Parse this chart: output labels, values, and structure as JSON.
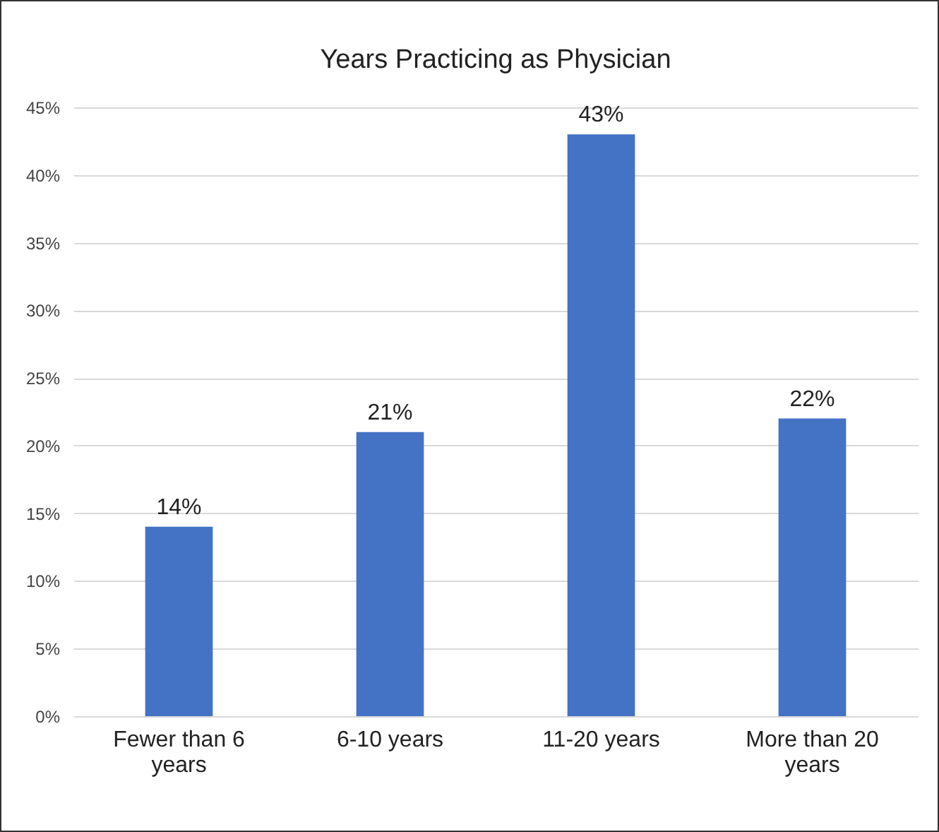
{
  "chart_data": {
    "type": "bar",
    "title": "Years Practicing as Physician",
    "categories": [
      "Fewer than 6 years",
      "6-10 years",
      "11-20 years",
      "More than 20 years"
    ],
    "values": [
      14,
      21,
      43,
      22
    ],
    "value_labels": [
      "14%",
      "21%",
      "43%",
      "22%"
    ],
    "color": "#4472c4",
    "ylim": [
      0,
      45
    ],
    "yticks": [
      {
        "value": 0,
        "label": "0%"
      },
      {
        "value": 5,
        "label": "5%"
      },
      {
        "value": 10,
        "label": "10%"
      },
      {
        "value": 15,
        "label": "15%"
      },
      {
        "value": 20,
        "label": "20%"
      },
      {
        "value": 25,
        "label": "25%"
      },
      {
        "value": 30,
        "label": "30%"
      },
      {
        "value": 35,
        "label": "35%"
      },
      {
        "value": 40,
        "label": "40%"
      },
      {
        "value": 45,
        "label": "45%"
      }
    ],
    "grid": "y"
  }
}
